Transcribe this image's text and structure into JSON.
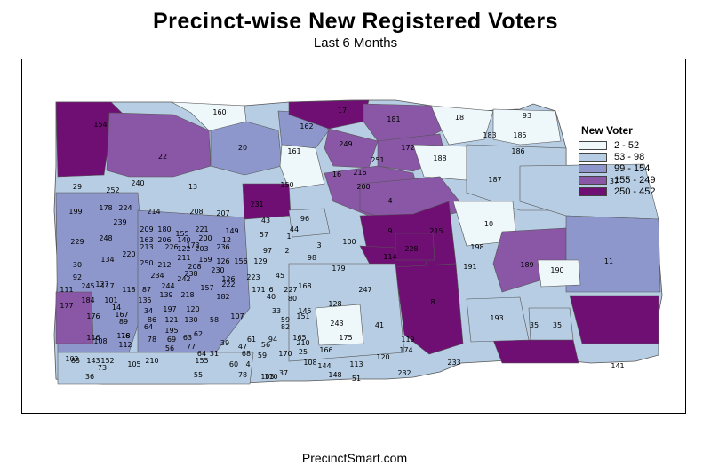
{
  "map": {
    "title": "Precinct-wise New Registered Voters",
    "subtitle": "Last 6 Months",
    "credit": "PrecinctSmart.com"
  },
  "legend": {
    "title": "New Voter",
    "classes": [
      {
        "label": "2 - 52",
        "color": "#eef7fa"
      },
      {
        "label": "53 - 98",
        "color": "#b6cde3"
      },
      {
        "label": "99 - 154",
        "color": "#8d97cb"
      },
      {
        "label": "155 - 249",
        "color": "#8a56a6"
      },
      {
        "label": "250 - 452",
        "color": "#6f0f73"
      }
    ]
  },
  "precinct_labels": [
    "160",
    "17",
    "181",
    "18",
    "93",
    "154",
    "162",
    "183",
    "185",
    "161",
    "20",
    "249",
    "172",
    "186",
    "22",
    "188",
    "251",
    "216",
    "16",
    "187",
    "29",
    "240",
    "252",
    "13",
    "150",
    "200",
    "37",
    "199",
    "178",
    "224",
    "214",
    "208",
    "207",
    "231",
    "4",
    "96",
    "10",
    "239",
    "209",
    "180",
    "155",
    "221",
    "149",
    "57",
    "44",
    "1",
    "229",
    "248",
    "163",
    "206",
    "140",
    "200",
    "122",
    "203",
    "236",
    "97",
    "9",
    "215",
    "198",
    "134",
    "213",
    "226",
    "173",
    "12",
    "2",
    "3",
    "100",
    "228",
    "30",
    "220",
    "211",
    "212",
    "208",
    "169",
    "126",
    "156",
    "129",
    "98",
    "114",
    "191",
    "189",
    "11",
    "250",
    "234",
    "238",
    "230",
    "223",
    "45",
    "179",
    "190",
    "92",
    "127",
    "244",
    "242",
    "157",
    "222",
    "171",
    "6",
    "227",
    "168",
    "247",
    "111",
    "245",
    "117",
    "118",
    "87",
    "139",
    "218",
    "182",
    "43",
    "184",
    "101",
    "135",
    "80",
    "8",
    "177",
    "14",
    "167",
    "197",
    "120",
    "89",
    "33",
    "40",
    "145",
    "35",
    "193",
    "105",
    "126",
    "118",
    "165",
    "176",
    "116",
    "34",
    "121",
    "130",
    "112",
    "73",
    "64",
    "58",
    "41",
    "56",
    "76",
    "108",
    "86",
    "119",
    "195",
    "107",
    "82",
    "59",
    "60",
    "78",
    "69",
    "63",
    "62",
    "77",
    "35",
    "47",
    "174",
    "36",
    "39",
    "68",
    "56",
    "120",
    "64",
    "31",
    "25",
    "55",
    "59",
    "78",
    "144",
    "113",
    "232",
    "175",
    "243",
    "155",
    "151",
    "148",
    "128",
    "210",
    "4",
    "37",
    "233",
    "166",
    "85",
    "102",
    "143",
    "152",
    "108",
    "210",
    "51",
    "170",
    "61",
    "103",
    "110",
    "94",
    "141",
    "42"
  ]
}
